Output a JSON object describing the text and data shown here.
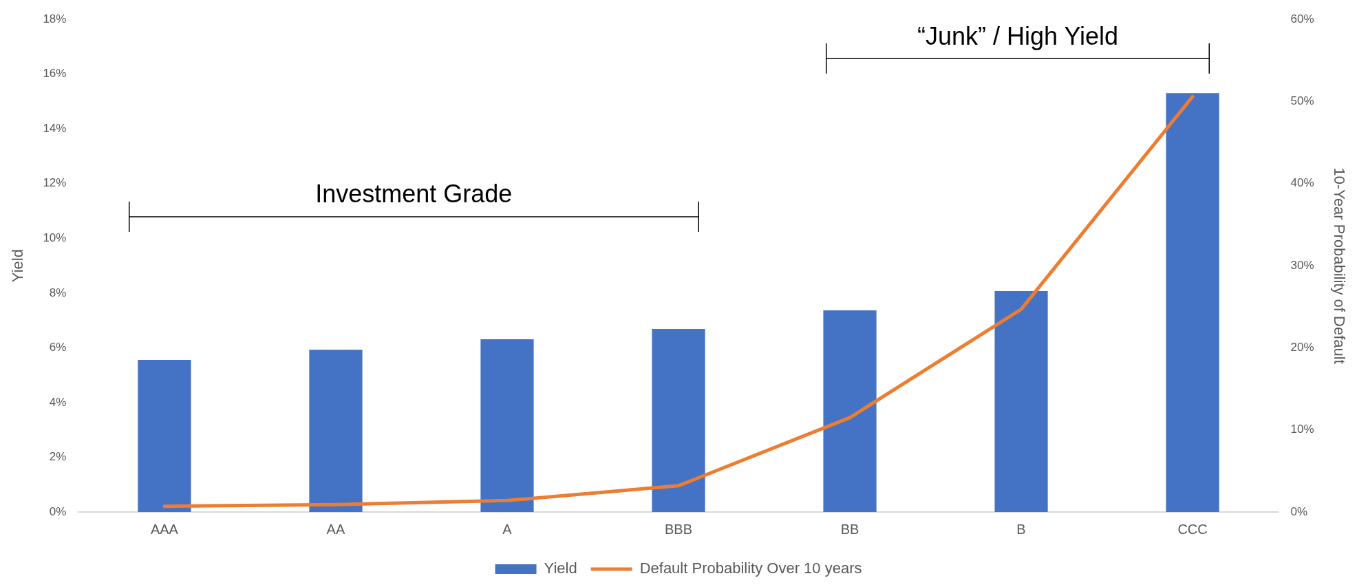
{
  "chart_data": {
    "type": "bar",
    "categories": [
      "AAA",
      "AA",
      "A",
      "BBB",
      "BB",
      "B",
      "CCC"
    ],
    "series": [
      {
        "name": "Yield",
        "color": "#4472c4",
        "values": [
          5.56,
          5.93,
          6.31,
          6.69,
          7.37,
          8.07,
          15.31
        ]
      },
      {
        "name": "Default Probability Over 10 years",
        "type": "line",
        "axis": "y2",
        "color": "#ed7d31",
        "values": [
          0.7,
          0.9,
          1.4,
          3.2,
          11.5,
          24.7,
          50.6
        ]
      }
    ],
    "ylabel": "Yield",
    "y2label": "10-Year Probability of Default",
    "ylim": [
      0,
      18
    ],
    "yticks": [
      {
        "value": 0,
        "label": "0%"
      },
      {
        "value": 2,
        "label": "2%"
      },
      {
        "value": 4,
        "label": "4%"
      },
      {
        "value": 6,
        "label": "6%"
      },
      {
        "value": 8,
        "label": "8%"
      },
      {
        "value": 10,
        "label": "10%"
      },
      {
        "value": 12,
        "label": "12%"
      },
      {
        "value": 14,
        "label": "14%"
      },
      {
        "value": 16,
        "label": "16%"
      },
      {
        "value": 18,
        "label": "18%"
      }
    ],
    "y2lim": [
      0,
      60
    ],
    "y2ticks": [
      {
        "value": 0,
        "label": "0%"
      },
      {
        "value": 10,
        "label": "10%"
      },
      {
        "value": 20,
        "label": "20%"
      },
      {
        "value": 30,
        "label": "30%"
      },
      {
        "value": 40,
        "label": "40%"
      },
      {
        "value": 50,
        "label": "50%"
      },
      {
        "value": 60,
        "label": "60%"
      }
    ],
    "annotations": [
      "Investment Grade",
      "“Junk” / High Yield"
    ],
    "legend": "bottom",
    "grid": false,
    "marker": "none",
    "line_style": "solid"
  }
}
